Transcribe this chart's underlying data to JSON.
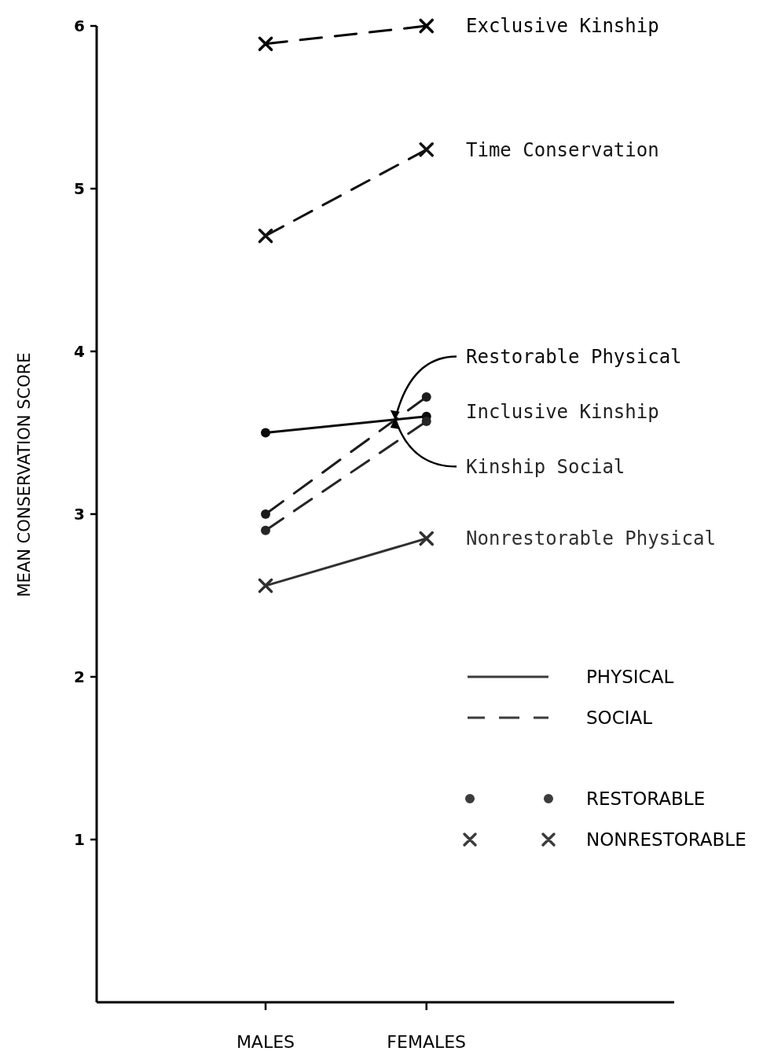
{
  "chart_data": {
    "type": "line",
    "ylabel": "MEAN CONSERVATION SCORE",
    "categories": [
      "MALES",
      "FEMALES"
    ],
    "ylim": [
      0,
      6
    ],
    "yticks": [
      1,
      2,
      3,
      4,
      5,
      6
    ],
    "series": [
      {
        "name": "Exclusive Kinship",
        "color": "#000000",
        "values": [
          5.89,
          6.0
        ],
        "marker": "cross",
        "line_style": "dashed"
      },
      {
        "name": "Time Conservation",
        "color": "#121212",
        "values": [
          4.71,
          5.24
        ],
        "marker": "cross",
        "line_style": "dashed"
      },
      {
        "name": "Restorable Physical",
        "color": "#0a0a0a",
        "values": [
          3.5,
          3.6
        ],
        "marker": "circle",
        "line_style": "solid"
      },
      {
        "name": "Inclusive Kinship",
        "color": "#1c1c1c",
        "values": [
          3.0,
          3.72
        ],
        "marker": "circle",
        "line_style": "dashed"
      },
      {
        "name": "Kinship Social",
        "color": "#262626",
        "values": [
          2.9,
          3.57
        ],
        "marker": "circle",
        "line_style": "dashed"
      },
      {
        "name": "Nonrestorable Physical",
        "color": "#303030",
        "values": [
          2.56,
          2.85
        ],
        "marker": "cross",
        "line_style": "solid"
      }
    ],
    "annotations": [
      "PHYSICAL",
      "SOCIAL",
      "RESTORABLE",
      "NONRESTORABLE"
    ]
  }
}
